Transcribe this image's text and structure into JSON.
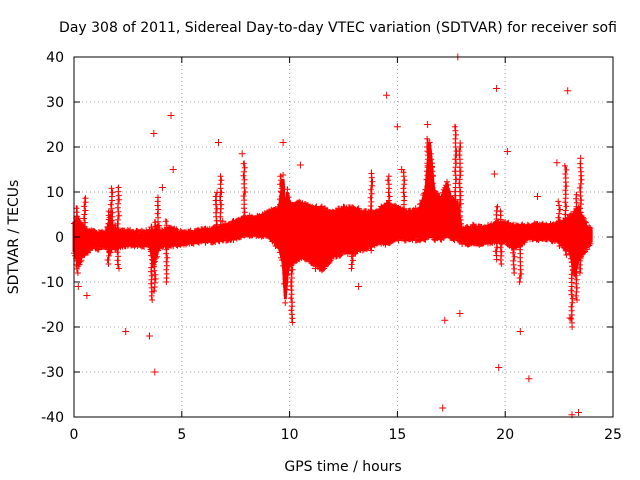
{
  "chart_data": {
    "type": "scatter",
    "title": "Day 308 of 2011, Sidereal Day-to-day VTEC variation (SDTVAR) for receiver sofi",
    "xlabel": "GPS time / hours",
    "ylabel": "SDTVAR / TECUs",
    "xlim": [
      0,
      25
    ],
    "ylim": [
      -40,
      40
    ],
    "xticks": [
      0,
      5,
      10,
      15,
      20,
      25
    ],
    "yticks": [
      -40,
      -30,
      -20,
      -10,
      0,
      10,
      20,
      30,
      40
    ],
    "xtick_labels": [
      "0",
      "5",
      "10",
      "15",
      "20",
      "25"
    ],
    "ytick_labels": [
      "-40",
      "-30",
      "-20",
      "-10",
      "0",
      "10",
      "20",
      "30",
      "40"
    ],
    "grid": true,
    "marker": "+",
    "series_color": "#ff0000",
    "series": [
      {
        "name": "SDTVAR",
        "band": [
          [
            0.0,
            -3,
            3
          ],
          [
            0.2,
            -6,
            4
          ],
          [
            0.4,
            -4,
            2
          ],
          [
            0.6,
            -3,
            1
          ],
          [
            0.8,
            -2,
            1
          ],
          [
            1.0,
            -2,
            0.5
          ],
          [
            1.5,
            -2,
            0.5
          ],
          [
            1.7,
            -3,
            5
          ],
          [
            1.8,
            -2,
            2
          ],
          [
            2.0,
            -2,
            1
          ],
          [
            2.5,
            -1.5,
            1
          ],
          [
            3.0,
            -1.5,
            0.5
          ],
          [
            3.5,
            -1.5,
            1
          ],
          [
            3.7,
            -6,
            0.5
          ],
          [
            3.9,
            -3,
            2
          ],
          [
            4.0,
            -1.5,
            0.5
          ],
          [
            4.5,
            -1.5,
            1.5
          ],
          [
            5.0,
            -1,
            0.5
          ],
          [
            6.0,
            -0.5,
            1
          ],
          [
            6.5,
            -0.5,
            1.5
          ],
          [
            7.0,
            0,
            2
          ],
          [
            7.5,
            0,
            3
          ],
          [
            8.0,
            1,
            4
          ],
          [
            8.5,
            1,
            4
          ],
          [
            9.0,
            0.5,
            5
          ],
          [
            9.5,
            -2,
            6
          ],
          [
            9.7,
            -6,
            13
          ],
          [
            9.8,
            -14,
            4
          ],
          [
            9.9,
            -8,
            10
          ],
          [
            10.0,
            -6,
            7
          ],
          [
            10.5,
            -4,
            7
          ],
          [
            11.0,
            -5,
            6
          ],
          [
            11.5,
            -7,
            6
          ],
          [
            12.0,
            -4,
            5
          ],
          [
            12.5,
            -3,
            6
          ],
          [
            13.0,
            -3,
            6
          ],
          [
            13.5,
            -2,
            5
          ],
          [
            14.0,
            -1,
            5
          ],
          [
            14.5,
            -1,
            7
          ],
          [
            15.0,
            0,
            6
          ],
          [
            15.5,
            0,
            5
          ],
          [
            16.0,
            0,
            6
          ],
          [
            16.3,
            0,
            10
          ],
          [
            16.5,
            1,
            21
          ],
          [
            16.7,
            0,
            10
          ],
          [
            17.0,
            0,
            8
          ],
          [
            17.3,
            1,
            12
          ],
          [
            17.5,
            0,
            8
          ],
          [
            17.8,
            0,
            7
          ],
          [
            18.0,
            -1,
            1
          ],
          [
            18.5,
            -1,
            2
          ],
          [
            19.0,
            -1,
            1.5
          ],
          [
            19.5,
            -0.5,
            2.5
          ],
          [
            20.0,
            -0.5,
            3
          ],
          [
            20.3,
            -2,
            2
          ],
          [
            20.5,
            -2,
            2
          ],
          [
            21.0,
            0,
            2
          ],
          [
            21.5,
            0,
            2.5
          ],
          [
            22.0,
            0,
            2
          ],
          [
            22.5,
            -0.5,
            2.5
          ],
          [
            23.0,
            -3,
            4
          ],
          [
            23.2,
            -8,
            5
          ],
          [
            23.4,
            -5,
            6
          ],
          [
            23.6,
            -3,
            4
          ],
          [
            23.8,
            -2,
            2
          ],
          [
            24.0,
            -1,
            1.5
          ]
        ],
        "spikes": [
          [
            0.15,
            -8,
            7
          ],
          [
            0.5,
            -4,
            9
          ],
          [
            1.6,
            -6,
            6
          ],
          [
            1.75,
            0,
            11
          ],
          [
            2.05,
            -7,
            11.5
          ],
          [
            3.6,
            -14,
            3
          ],
          [
            3.75,
            -12,
            4
          ],
          [
            3.9,
            -2,
            9
          ],
          [
            4.3,
            -10,
            4
          ],
          [
            6.6,
            0,
            10
          ],
          [
            6.8,
            0,
            14
          ],
          [
            7.9,
            1,
            17
          ],
          [
            9.6,
            0,
            14
          ],
          [
            10.1,
            -19,
            2
          ],
          [
            12.9,
            -7,
            6
          ],
          [
            13.8,
            -3,
            15
          ],
          [
            14.6,
            0,
            14
          ],
          [
            15.3,
            0,
            15
          ],
          [
            16.4,
            2,
            22
          ],
          [
            16.6,
            2,
            18
          ],
          [
            17.7,
            2,
            25
          ],
          [
            17.9,
            2,
            21
          ],
          [
            19.6,
            -5,
            7
          ],
          [
            19.8,
            -6,
            6
          ],
          [
            20.4,
            -8,
            2
          ],
          [
            20.7,
            -10,
            2
          ],
          [
            22.5,
            -2,
            8
          ],
          [
            22.8,
            -4,
            16
          ],
          [
            23.1,
            -20,
            4
          ],
          [
            23.3,
            -14,
            10
          ],
          [
            23.5,
            -8,
            17
          ]
        ],
        "outliers": [
          [
            0.6,
            -13
          ],
          [
            2.4,
            -21
          ],
          [
            3.5,
            -22
          ],
          [
            3.7,
            23
          ],
          [
            3.75,
            -30
          ],
          [
            4.5,
            27
          ],
          [
            4.6,
            15
          ],
          [
            6.7,
            21
          ],
          [
            7.8,
            18.5
          ],
          [
            9.7,
            21
          ],
          [
            10.5,
            16
          ],
          [
            11.2,
            -7
          ],
          [
            13.2,
            -11
          ],
          [
            14.5,
            31.5
          ],
          [
            15.0,
            24.5
          ],
          [
            15.2,
            15
          ],
          [
            16.4,
            25
          ],
          [
            17.1,
            -38
          ],
          [
            17.2,
            -18.5
          ],
          [
            17.8,
            40
          ],
          [
            17.9,
            -17
          ],
          [
            19.6,
            33
          ],
          [
            19.7,
            -29
          ],
          [
            20.1,
            19
          ],
          [
            20.7,
            -21
          ],
          [
            21.1,
            -31.5
          ],
          [
            22.4,
            16.5
          ],
          [
            22.9,
            32.5
          ],
          [
            23.0,
            -18
          ],
          [
            23.1,
            -39.5
          ],
          [
            23.4,
            -39
          ],
          [
            23.5,
            17.5
          ],
          [
            21.5,
            9
          ],
          [
            19.5,
            14
          ],
          [
            6.9,
            3.5
          ],
          [
            4.1,
            11
          ],
          [
            0.2,
            -11
          ],
          [
            1.9,
            2.5
          ]
        ]
      }
    ]
  }
}
